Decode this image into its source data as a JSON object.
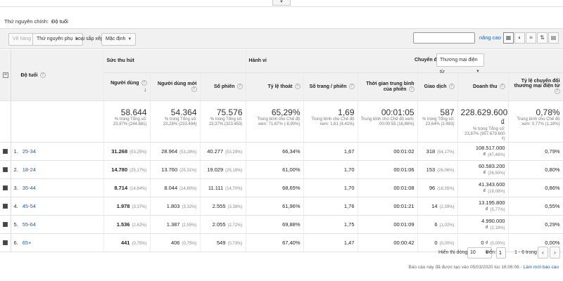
{
  "primary_dimension": {
    "label": "Thứ nguyên chính:",
    "value": "Độ tuổi"
  },
  "toolbar": {
    "plot_rows": "Vẽ hàng",
    "secondary_dimension": "Thứ nguyên phụ",
    "sort_type_label": "Loại sắp xếp:",
    "sort_type_value": "Mặc định",
    "search_placeholder": "",
    "advanced": "nâng cao"
  },
  "header": {
    "group_acquisition": "Sức thu hút",
    "group_behavior": "Hành vi",
    "group_conversion": "Chuyển đổi",
    "conversion_select": "Thương mại điện tử",
    "dimension": "Độ tuổi",
    "columns": [
      "Người dùng",
      "Người dùng mới",
      "Số phiên",
      "Tỷ lệ thoát",
      "Số trang / phiên",
      "Thời gian trung bình của phiên",
      "Giao dịch",
      "Doanh thu",
      "Tỷ lệ chuyển đổi thương mại điện tử"
    ]
  },
  "totals": [
    {
      "value": "58.644",
      "sub": "% trong Tổng số: 23,97% (244.681)"
    },
    {
      "value": "54.364",
      "sub": "% trong Tổng số: 23,28% (233.494)"
    },
    {
      "value": "75.576",
      "sub": "% trong Tổng số: 23,37% (323.453)"
    },
    {
      "value": "65,29%",
      "sub": "Trung bình cho Chế độ xem: 71,67% (-8,90%)"
    },
    {
      "value": "1,69",
      "sub": "Trung bình cho Chế độ xem: 1,61 (4,41%)"
    },
    {
      "value": "00:01:05",
      "sub": "Trung bình cho Chế độ xem: 00:00:55 (16,86%)"
    },
    {
      "value": "587",
      "sub": "% trong Tổng số: 23,64% (2.483)"
    },
    {
      "value": "228.629.600 ₫",
      "sub": "% trong Tổng số: 23,87% (957.679.600 ₫)"
    },
    {
      "value": "0,78%",
      "sub": "Trung bình cho Chế độ xem: 0,77% (1,18%)"
    }
  ],
  "rows": [
    {
      "idx": "1.",
      "name": "25-34",
      "users": "31.268",
      "users_pct": "(53,25%)",
      "new_users": "28.964",
      "new_users_pct": "(53,28%)",
      "sessions": "40.277",
      "sessions_pct": "(53,29%)",
      "bounce": "66,34%",
      "pages": "1,67",
      "duration": "00:01:02",
      "trans": "318",
      "trans_pct": "(54,17%)",
      "revenue": "108.517.000 ₫",
      "revenue_pct": "(47,46%)",
      "conv": "0,79%"
    },
    {
      "idx": "2.",
      "name": "18-24",
      "users": "14.780",
      "users_pct": "(25,17%)",
      "new_users": "13.760",
      "new_users_pct": "(25,31%)",
      "sessions": "19.029",
      "sessions_pct": "(25,18%)",
      "bounce": "61,00%",
      "pages": "1,70",
      "duration": "00:01:06",
      "trans": "153",
      "trans_pct": "(26,06%)",
      "revenue": "60.583.200 ₫",
      "revenue_pct": "(26,50%)",
      "conv": "0,80%"
    },
    {
      "idx": "3.",
      "name": "35-44",
      "users": "8.714",
      "users_pct": "(14,84%)",
      "new_users": "8.044",
      "new_users_pct": "(14,80%)",
      "sessions": "11.111",
      "sessions_pct": "(14,70%)",
      "bounce": "68,65%",
      "pages": "1,70",
      "duration": "00:01:08",
      "trans": "96",
      "trans_pct": "(16,35%)",
      "revenue": "41.343.600 ₫",
      "revenue_pct": "(18,08%)",
      "conv": "0,86%"
    },
    {
      "idx": "4.",
      "name": "45-54",
      "users": "1.978",
      "users_pct": "(3,37%)",
      "new_users": "1.803",
      "new_users_pct": "(3,32%)",
      "sessions": "2.555",
      "sessions_pct": "(3,38%)",
      "bounce": "61,96%",
      "pages": "1,76",
      "duration": "00:01:21",
      "trans": "14",
      "trans_pct": "(2,39%)",
      "revenue": "13.195.800 ₫",
      "revenue_pct": "(5,77%)",
      "conv": "0,55%"
    },
    {
      "idx": "5.",
      "name": "55-64",
      "users": "1.536",
      "users_pct": "(2,62%)",
      "new_users": "1.387",
      "new_users_pct": "(2,55%)",
      "sessions": "2.055",
      "sessions_pct": "(2,72%)",
      "bounce": "69,88%",
      "pages": "1,75",
      "duration": "00:01:09",
      "trans": "6",
      "trans_pct": "(1,02%)",
      "revenue": "4.990.000 ₫",
      "revenue_pct": "(2,18%)",
      "conv": "0,29%"
    },
    {
      "idx": "6.",
      "name": "65+",
      "users": "441",
      "users_pct": "(0,75%)",
      "new_users": "406",
      "new_users_pct": "(0,75%)",
      "sessions": "549",
      "sessions_pct": "(0,73%)",
      "bounce": "67,40%",
      "pages": "1,47",
      "duration": "00:00:42",
      "trans": "0",
      "trans_pct": "(0,00%)",
      "revenue": "0 ₫",
      "revenue_pct": "(0,00%)",
      "conv": "0,00%"
    }
  ],
  "pager": {
    "rows_label": "Hiển thị dòng:",
    "rows_value": "10",
    "goto_label": "Đến:",
    "goto_value": "1",
    "range": "1 - 6 trong số 6",
    "prev": "‹",
    "next": "›"
  },
  "footer": {
    "text": "Báo cáo này đã được tạo vào 05/03/2020 lúc 16:06:06 - ",
    "refresh": "Làm mới báo cáo"
  }
}
